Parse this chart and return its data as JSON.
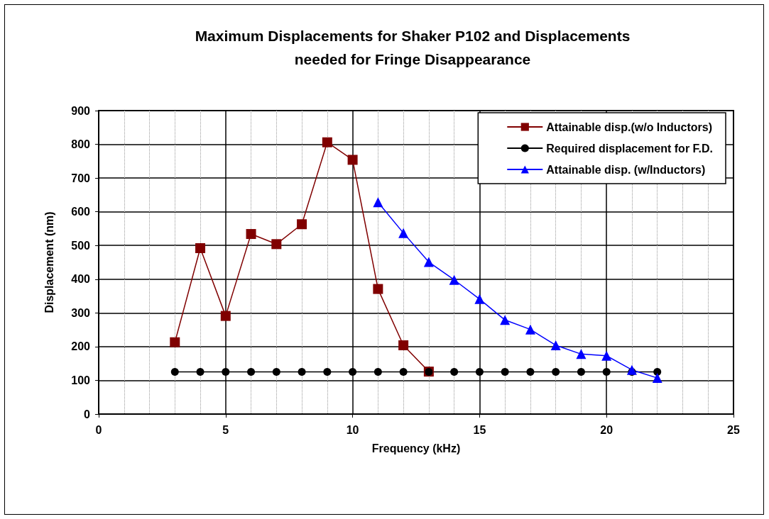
{
  "chart_data": {
    "type": "line",
    "title": "Maximum Displacements for Shaker P102 and Displacements\nneeded for Fringe Disappearance",
    "xlabel": "Frequency (kHz)",
    "ylabel": "Displacement (nm)",
    "xlim": [
      0,
      25
    ],
    "xticks": [
      0,
      5,
      10,
      15,
      20,
      25
    ],
    "ylim": [
      0,
      900
    ],
    "yticks": [
      0,
      100,
      200,
      300,
      400,
      500,
      600,
      700,
      800,
      900
    ],
    "grid": true,
    "legend": "top right",
    "line_style": "solid",
    "series": [
      {
        "name": "Attainable disp.(w/o Inductors)",
        "color": "#800000",
        "marker": "square",
        "x": [
          3,
          4,
          5,
          6,
          7,
          8,
          9,
          10,
          11,
          12,
          13
        ],
        "values": [
          213,
          492,
          291,
          534,
          504,
          563,
          806,
          754,
          371,
          204,
          126
        ]
      },
      {
        "name": "Required displacement for F.D.",
        "color": "#000000",
        "marker": "circle",
        "x": [
          3,
          4,
          5,
          6,
          7,
          8,
          9,
          10,
          11,
          12,
          13,
          14,
          15,
          16,
          17,
          18,
          19,
          20,
          21,
          22
        ],
        "values": [
          125,
          125,
          125,
          125,
          125,
          125,
          125,
          125,
          125,
          125,
          125,
          125,
          125,
          125,
          125,
          125,
          125,
          125,
          125,
          125
        ]
      },
      {
        "name": "Attainable disp. (w/Inductors)",
        "color": "#0000ff",
        "marker": "triangle",
        "x": [
          11,
          12,
          13,
          14,
          15,
          16,
          17,
          18,
          19,
          20,
          21,
          22
        ],
        "values": [
          628,
          537,
          451,
          398,
          341,
          279,
          251,
          204,
          178,
          173,
          131,
          107
        ]
      }
    ]
  }
}
